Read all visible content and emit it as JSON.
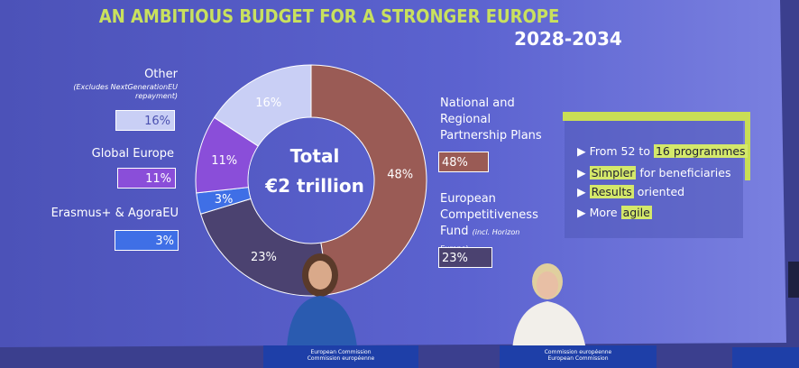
{
  "chart_data": {
    "type": "pie",
    "title": "AN AMBITIOUS BUDGET FOR A STRONGER EUROPE",
    "subtitle": "2028-2034",
    "center_label": [
      "Total",
      "€2 trillion"
    ],
    "categories": [
      "National and Regional Partnership Plans",
      "European Competitiveness Fund",
      "Erasmus+ & AgoraEU",
      "Global Europe",
      "Other"
    ],
    "values": [
      48,
      23,
      3,
      11,
      16
    ],
    "value_labels": [
      "48%",
      "23%",
      "3%",
      "11%",
      "16%"
    ],
    "colors": [
      "#9a5b55",
      "#4b4270",
      "#3f6fe6",
      "#8a4ed9",
      "#c9cff5"
    ],
    "annotations": [
      "(incl. Horizon Europe)",
      "(Excludes NextGenerationEU repayment)"
    ]
  },
  "bullets": [
    [
      "From 52 to ",
      "16 programmes"
    ],
    [
      "Simpler",
      " for beneficiaries"
    ],
    [
      "Results",
      " oriented"
    ],
    [
      "More ",
      "agile"
    ]
  ],
  "highlight": [
    1,
    0,
    0,
    1
  ],
  "podiums": [
    [
      "European Commission",
      "Commission européenne"
    ],
    [
      "Commission européenne",
      "European Commission"
    ]
  ]
}
